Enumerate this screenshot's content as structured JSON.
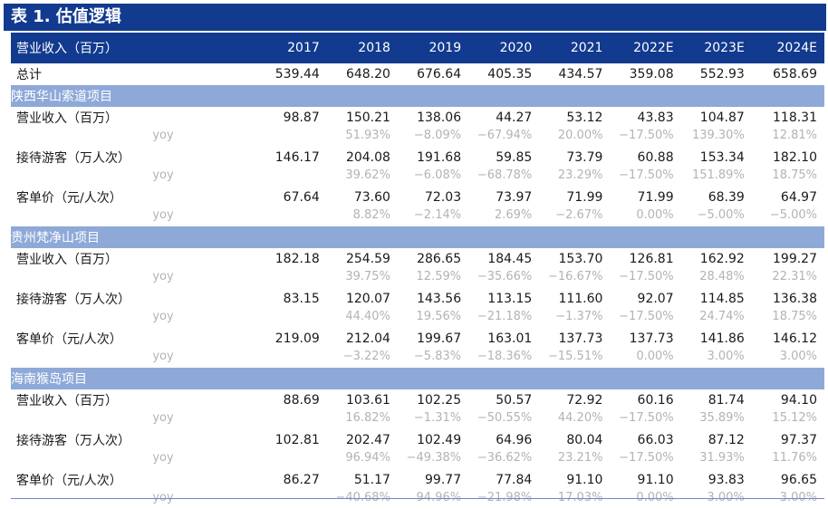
{
  "title": "表 1. 估值逻辑",
  "header": {
    "label": "营业收入（百万）",
    "years": [
      "2017",
      "2018",
      "2019",
      "2020",
      "2021",
      "2022E",
      "2023E",
      "2024E"
    ]
  },
  "total": {
    "label": "总计",
    "values": [
      "539.44",
      "648.20",
      "676.64",
      "405.35",
      "434.57",
      "359.08",
      "552.93",
      "658.69"
    ]
  },
  "sections": [
    {
      "name": "陕西华山索道项目",
      "metrics": [
        {
          "label": "营业收入（百万）",
          "values": [
            "98.87",
            "150.21",
            "138.06",
            "44.27",
            "53.12",
            "43.83",
            "104.87",
            "118.31"
          ],
          "yoy_label": "yoy",
          "yoy": [
            "",
            "51.93%",
            "−8.09%",
            "−67.94%",
            "20.00%",
            "−17.50%",
            "139.30%",
            "12.81%"
          ]
        },
        {
          "label": "接待游客（万人次）",
          "values": [
            "146.17",
            "204.08",
            "191.68",
            "59.85",
            "73.79",
            "60.88",
            "153.34",
            "182.10"
          ],
          "yoy_label": "yoy",
          "yoy": [
            "",
            "39.62%",
            "−6.08%",
            "−68.78%",
            "23.29%",
            "−17.50%",
            "151.89%",
            "18.75%"
          ]
        },
        {
          "label": "客单价（元/人次）",
          "values": [
            "67.64",
            "73.60",
            "72.03",
            "73.97",
            "71.99",
            "71.99",
            "68.39",
            "64.97"
          ],
          "yoy_label": "yoy",
          "yoy": [
            "",
            "8.82%",
            "−2.14%",
            "2.69%",
            "−2.67%",
            "0.00%",
            "−5.00%",
            "−5.00%"
          ]
        }
      ]
    },
    {
      "name": "贵州梵净山项目",
      "metrics": [
        {
          "label": "营业收入（百万）",
          "values": [
            "182.18",
            "254.59",
            "286.65",
            "184.45",
            "153.70",
            "126.81",
            "162.92",
            "199.27"
          ],
          "yoy_label": "yoy",
          "yoy": [
            "",
            "39.75%",
            "12.59%",
            "−35.66%",
            "−16.67%",
            "−17.50%",
            "28.48%",
            "22.31%"
          ]
        },
        {
          "label": "接待游客（万人次）",
          "values": [
            "83.15",
            "120.07",
            "143.56",
            "113.15",
            "111.60",
            "92.07",
            "114.85",
            "136.38"
          ],
          "yoy_label": "yoy",
          "yoy": [
            "",
            "44.40%",
            "19.56%",
            "−21.18%",
            "−1.37%",
            "−17.50%",
            "24.74%",
            "18.75%"
          ]
        },
        {
          "label": "客单价（元/人次）",
          "values": [
            "219.09",
            "212.04",
            "199.67",
            "163.01",
            "137.73",
            "137.73",
            "141.86",
            "146.12"
          ],
          "yoy_label": "yoy",
          "yoy": [
            "",
            "−3.22%",
            "−5.83%",
            "−18.36%",
            "−15.51%",
            "0.00%",
            "3.00%",
            "3.00%"
          ]
        }
      ]
    },
    {
      "name": "海南猴岛项目",
      "metrics": [
        {
          "label": "营业收入（百万）",
          "values": [
            "88.69",
            "103.61",
            "102.25",
            "50.57",
            "72.92",
            "60.16",
            "81.74",
            "94.10"
          ],
          "yoy_label": "yoy",
          "yoy": [
            "",
            "16.82%",
            "−1.31%",
            "−50.55%",
            "44.20%",
            "−17.50%",
            "35.89%",
            "15.12%"
          ]
        },
        {
          "label": "接待游客（万人次）",
          "values": [
            "102.81",
            "202.47",
            "102.49",
            "64.96",
            "80.04",
            "66.03",
            "87.12",
            "97.37"
          ],
          "yoy_label": "yoy",
          "yoy": [
            "",
            "96.94%",
            "−49.38%",
            "−36.62%",
            "23.21%",
            "−17.50%",
            "31.93%",
            "11.76%"
          ]
        },
        {
          "label": "客单价（元/人次）",
          "values": [
            "86.27",
            "51.17",
            "99.77",
            "77.84",
            "91.10",
            "91.10",
            "93.83",
            "96.65"
          ],
          "yoy_label": "yoy",
          "yoy": [
            "",
            "−40.68%",
            "94.96%",
            "−21.98%",
            "17.03%",
            "0.00%",
            "3.00%",
            "3.00%"
          ]
        }
      ]
    }
  ],
  "colors": {
    "header_bg": "#123a8f",
    "section_bg": "#8ea9d8",
    "yoy_text": "#b3b3b3"
  }
}
